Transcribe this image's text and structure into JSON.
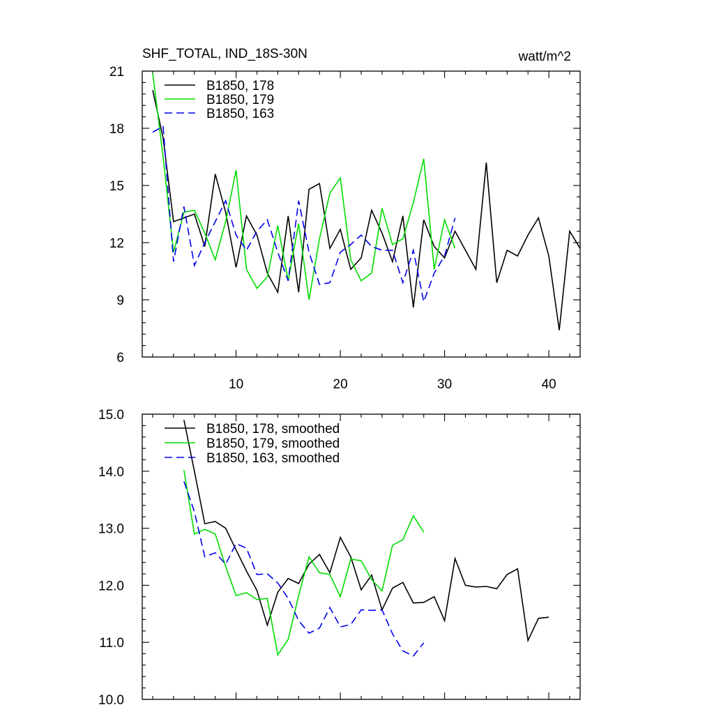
{
  "chart_data": [
    {
      "type": "line",
      "title": "SHF_TOTAL, IND_18S-30N",
      "units": "watt/m^2",
      "xlim": [
        1,
        43
      ],
      "ylim": [
        6,
        21
      ],
      "yticks": [
        6,
        9,
        12,
        15,
        18,
        21
      ],
      "xticks": [
        10,
        20,
        30,
        40
      ],
      "legend_position": "top-left",
      "series": [
        {
          "name": "B1850, 178",
          "color": "#000000",
          "dash": "solid",
          "x": [
            2,
            3,
            4,
            5,
            6,
            7,
            8,
            9,
            10,
            11,
            12,
            13,
            14,
            15,
            16,
            17,
            18,
            19,
            20,
            21,
            22,
            23,
            24,
            25,
            26,
            27,
            28,
            29,
            30,
            31,
            32,
            33,
            34,
            35,
            36,
            37,
            38,
            39,
            40,
            41,
            42,
            43
          ],
          "values": [
            20.0,
            17.5,
            13.1,
            13.3,
            13.5,
            11.8,
            15.6,
            13.6,
            10.7,
            13.4,
            12.4,
            10.4,
            9.4,
            13.4,
            9.4,
            14.8,
            15.1,
            11.7,
            12.7,
            10.6,
            11.2,
            13.7,
            12.5,
            11.0,
            13.4,
            8.6,
            13.2,
            11.8,
            11.2,
            12.6,
            11.6,
            10.6,
            16.2,
            9.9,
            11.6,
            11.3,
            12.4,
            13.3,
            11.3,
            7.4,
            12.6,
            11.7
          ]
        },
        {
          "name": "B1850, 179",
          "color": "#00dd00",
          "dash": "solid",
          "x": [
            2,
            3,
            4,
            5,
            6,
            7,
            8,
            9,
            10,
            11,
            12,
            13,
            14,
            15,
            16,
            17,
            18,
            19,
            20,
            21,
            22,
            23,
            24,
            25,
            26,
            27,
            28,
            29,
            30,
            31
          ],
          "values": [
            20.9,
            16.5,
            11.5,
            13.6,
            13.7,
            12.5,
            11.1,
            13.1,
            15.8,
            10.6,
            9.6,
            10.2,
            12.9,
            10.0,
            13.0,
            9.0,
            12.2,
            14.6,
            15.4,
            11.1,
            10.0,
            10.4,
            13.8,
            11.9,
            12.2,
            14.1,
            16.4,
            10.6,
            13.2,
            11.7
          ]
        },
        {
          "name": "B1850, 163",
          "color": "#0000ee",
          "dash": "dashed",
          "x": [
            2,
            3,
            4,
            5,
            6,
            7,
            8,
            9,
            10,
            11,
            12,
            13,
            14,
            15,
            16,
            17,
            18,
            19,
            20,
            21,
            22,
            23,
            24,
            25,
            26,
            27,
            28,
            29,
            30,
            31
          ],
          "values": [
            17.8,
            18.1,
            11.0,
            13.9,
            10.8,
            12.0,
            13.1,
            14.2,
            12.4,
            11.6,
            12.6,
            13.2,
            11.5,
            10.0,
            14.2,
            11.5,
            9.8,
            9.9,
            11.5,
            11.9,
            12.4,
            11.8,
            11.6,
            11.6,
            9.9,
            11.6,
            8.9,
            10.4,
            11.3,
            13.3
          ]
        }
      ]
    },
    {
      "type": "line",
      "title": "",
      "xlim": [
        1,
        43
      ],
      "ylim": [
        10,
        15
      ],
      "yticks": [
        10.0,
        11.0,
        12.0,
        13.0,
        14.0,
        15.0
      ],
      "ytick_labels": [
        "10.0",
        "11.0",
        "12.0",
        "13.0",
        "14.0",
        "15.0"
      ],
      "xticks": [
        10,
        20,
        30,
        40
      ],
      "legend_position": "top-left",
      "series": [
        {
          "name": "B1850, 178, smoothed",
          "color": "#000000",
          "dash": "solid",
          "x": [
            5,
            6,
            7,
            8,
            9,
            10,
            11,
            12,
            13,
            14,
            15,
            16,
            17,
            18,
            19,
            20,
            21,
            22,
            23,
            24,
            25,
            26,
            27,
            28,
            29,
            30,
            31,
            32,
            33,
            34,
            35,
            36,
            37,
            38,
            39,
            40
          ],
          "values": [
            14.9,
            14.0,
            13.08,
            13.12,
            13.0,
            12.62,
            12.25,
            11.91,
            11.3,
            11.88,
            12.12,
            12.03,
            12.37,
            12.54,
            12.22,
            12.84,
            12.5,
            11.92,
            12.18,
            11.57,
            11.95,
            12.05,
            11.69,
            11.7,
            11.8,
            11.38,
            12.47,
            12.0,
            11.97,
            11.98,
            11.94,
            12.19,
            12.29,
            11.03,
            11.42,
            11.44
          ]
        },
        {
          "name": "B1850, 179, smoothed",
          "color": "#00dd00",
          "dash": "solid",
          "x": [
            5,
            6,
            7,
            8,
            9,
            10,
            11,
            12,
            13,
            14,
            15,
            16,
            17,
            18,
            19,
            20,
            21,
            22,
            23,
            24,
            25,
            26,
            27,
            28
          ],
          "values": [
            14.02,
            12.9,
            12.98,
            12.9,
            12.33,
            11.82,
            11.87,
            11.75,
            11.77,
            10.78,
            11.05,
            11.82,
            12.5,
            12.22,
            12.19,
            11.8,
            12.46,
            12.43,
            12.1,
            11.9,
            12.7,
            12.8,
            13.22,
            12.93
          ]
        },
        {
          "name": "B1850, 163, smoothed",
          "color": "#0000ee",
          "dash": "dashed",
          "x": [
            5,
            6,
            7,
            8,
            9,
            10,
            11,
            12,
            13,
            14,
            15,
            16,
            17,
            18,
            19,
            20,
            21,
            22,
            23,
            24,
            25,
            26,
            27,
            28
          ],
          "values": [
            13.82,
            13.29,
            12.5,
            12.57,
            12.37,
            12.73,
            12.65,
            12.19,
            12.2,
            12.04,
            11.77,
            11.38,
            11.16,
            11.25,
            11.61,
            11.27,
            11.31,
            11.57,
            11.56,
            11.57,
            11.15,
            10.85,
            10.76,
            10.99
          ]
        }
      ]
    }
  ]
}
